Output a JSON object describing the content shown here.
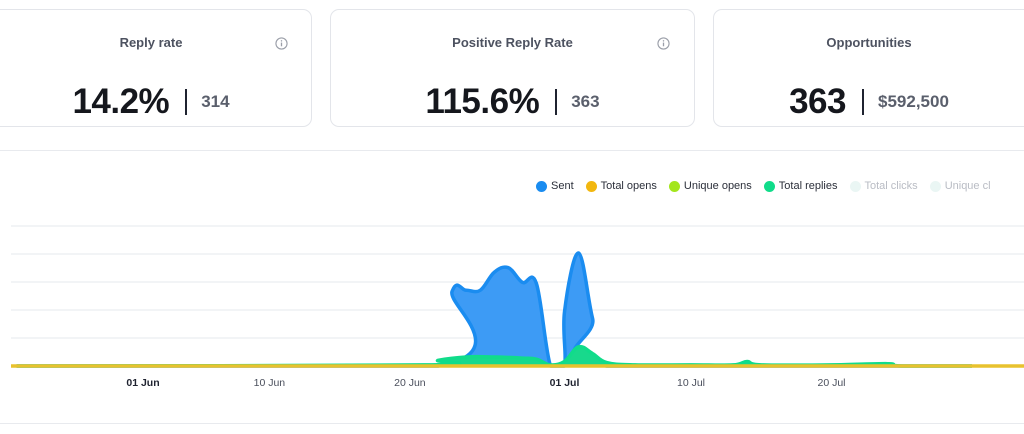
{
  "cards": [
    {
      "title": "Reply rate",
      "value": "14.2%",
      "sub": "314",
      "info_icon": "info-icon"
    },
    {
      "title": "Positive Reply Rate",
      "value": "115.6%",
      "sub": "363",
      "info_icon": "info-icon"
    },
    {
      "title": "Opportunities",
      "value": "363",
      "sub": "$592,500"
    }
  ],
  "legend": [
    {
      "label": "Sent",
      "color": "#1a8cf0",
      "active": true
    },
    {
      "label": "Total opens",
      "color": "#f2b70f",
      "active": true
    },
    {
      "label": "Unique opens",
      "color": "#a3e61c",
      "active": true
    },
    {
      "label": "Total replies",
      "color": "#10dc8a",
      "active": true
    },
    {
      "label": "Total clicks",
      "color": "#e8f7f4",
      "active": false
    },
    {
      "label": "Unique cl",
      "color": "#e8f7f4",
      "active": false
    }
  ],
  "chart_data": {
    "type": "area",
    "x_tick_labels": [
      {
        "label": "01 Jun",
        "bold": true
      },
      {
        "label": "10 Jun",
        "bold": false
      },
      {
        "label": "20 Jun",
        "bold": false
      },
      {
        "label": "01 Jul",
        "bold": true
      },
      {
        "label": "10 Jul",
        "bold": false
      },
      {
        "label": "20 Jul",
        "bold": false
      }
    ],
    "x_ticks": [
      "2024-06-01",
      "2024-06-10",
      "2024-06-20",
      "2024-07-01",
      "2024-07-10",
      "2024-07-20"
    ],
    "x_range": [
      "2024-05-23",
      "2024-07-30"
    ],
    "ylim": [
      0,
      100
    ],
    "grid": true,
    "series": [
      {
        "name": "Sent",
        "color": "#1a8cf0",
        "fill": "#3d9bf5",
        "points": [
          [
            "2024-05-23",
            0
          ],
          [
            "2024-06-22",
            0
          ],
          [
            "2024-06-23",
            66
          ],
          [
            "2024-06-24",
            67
          ],
          [
            "2024-06-25",
            67
          ],
          [
            "2024-06-26",
            83
          ],
          [
            "2024-06-27",
            87
          ],
          [
            "2024-06-28",
            74
          ],
          [
            "2024-06-29",
            73
          ],
          [
            "2024-06-30",
            0
          ],
          [
            "2024-07-01",
            0
          ],
          [
            "2024-07-01",
            48
          ],
          [
            "2024-07-02",
            100
          ],
          [
            "2024-07-03",
            42
          ],
          [
            "2024-07-04",
            0
          ],
          [
            "2024-07-30",
            0
          ]
        ]
      },
      {
        "name": "Total replies",
        "color": "#10dc8a",
        "fill": "#18d98c",
        "points": [
          [
            "2024-05-23",
            0
          ],
          [
            "2024-06-21",
            1
          ],
          [
            "2024-06-22",
            5
          ],
          [
            "2024-06-24",
            8
          ],
          [
            "2024-06-26",
            8
          ],
          [
            "2024-06-28",
            7
          ],
          [
            "2024-06-29",
            6
          ],
          [
            "2024-06-30",
            1
          ],
          [
            "2024-07-01",
            4
          ],
          [
            "2024-07-02",
            17
          ],
          [
            "2024-07-03",
            11
          ],
          [
            "2024-07-04",
            3
          ],
          [
            "2024-07-06",
            1
          ],
          [
            "2024-07-10",
            1
          ],
          [
            "2024-07-13",
            1
          ],
          [
            "2024-07-14",
            4
          ],
          [
            "2024-07-15",
            1
          ],
          [
            "2024-07-20",
            1
          ],
          [
            "2024-07-24",
            2
          ],
          [
            "2024-07-25",
            0
          ],
          [
            "2024-07-30",
            0
          ]
        ]
      },
      {
        "name": "Total opens",
        "color": "#e8c22e",
        "fill": "none",
        "points": [
          [
            "2024-05-23",
            0
          ],
          [
            "2024-07-30",
            0
          ]
        ]
      }
    ]
  }
}
